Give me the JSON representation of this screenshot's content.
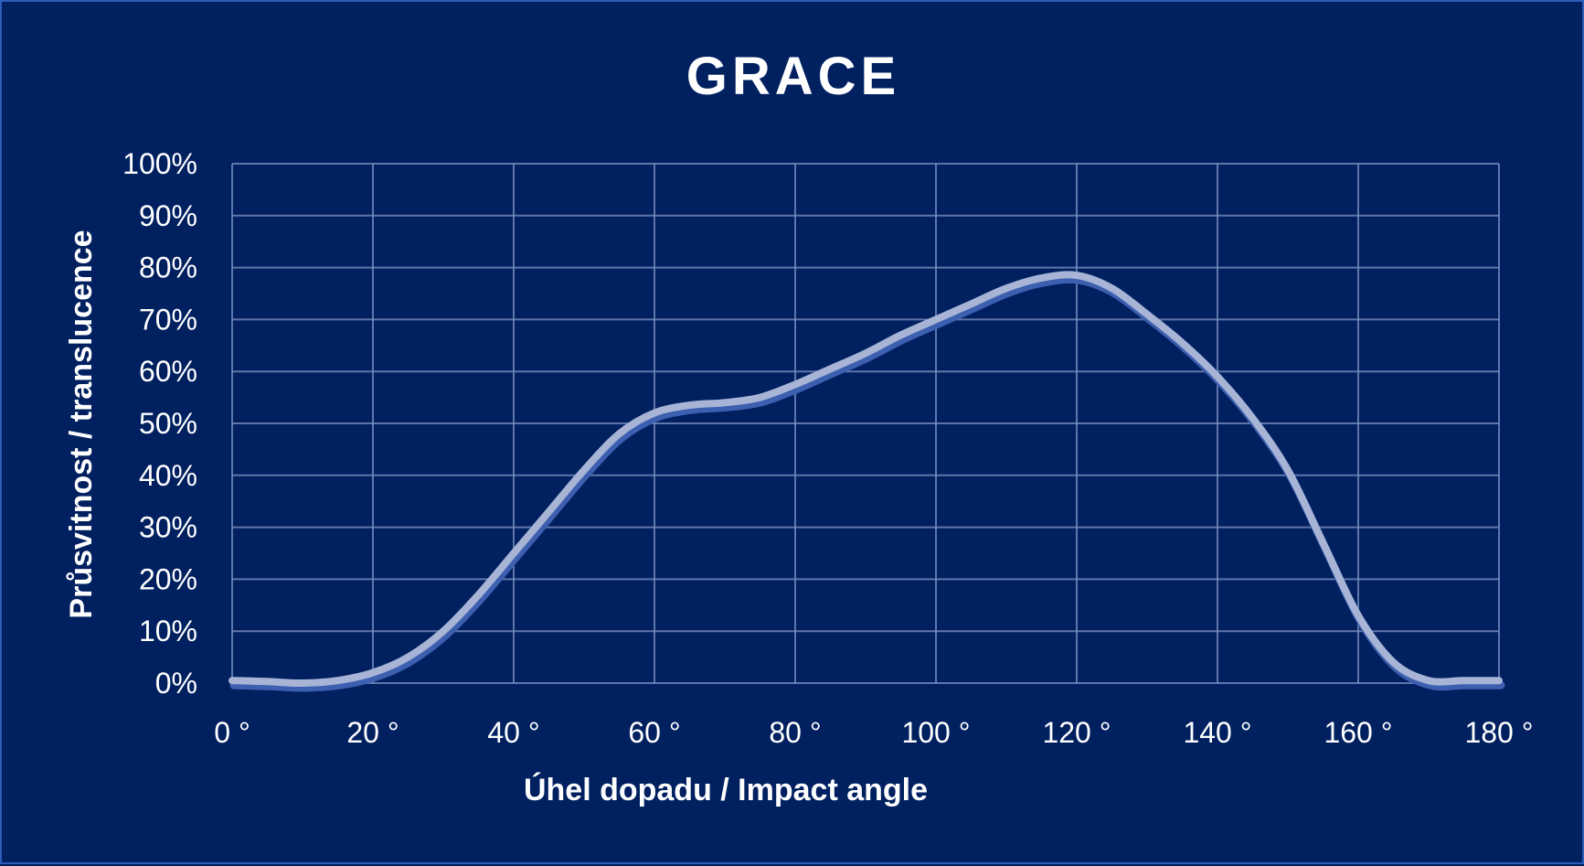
{
  "chart_data": {
    "type": "line",
    "title": "GRACE",
    "xlabel": "Úhel dopadu / Impact angle",
    "ylabel": "Průsvitnost  / translucence",
    "xlim": [
      0,
      180
    ],
    "ylim": [
      0,
      100
    ],
    "x_ticks": [
      0,
      20,
      40,
      60,
      80,
      100,
      120,
      140,
      160,
      180
    ],
    "x_tick_labels": [
      "0 °",
      "20 °",
      "40 °",
      "60 °",
      "80 °",
      "100 °",
      "120 °",
      "140 °",
      "160 °",
      "180 °"
    ],
    "y_ticks": [
      0,
      10,
      20,
      30,
      40,
      50,
      60,
      70,
      80,
      90,
      100
    ],
    "y_tick_labels": [
      "0%",
      "10%",
      "20%",
      "30%",
      "40%",
      "50%",
      "60%",
      "70%",
      "80%",
      "90%",
      "100%"
    ],
    "grid": true,
    "legend": "none",
    "series": [
      {
        "x": [
          0,
          5,
          10,
          15,
          20,
          25,
          30,
          35,
          40,
          45,
          50,
          55,
          60,
          65,
          70,
          75,
          80,
          85,
          90,
          95,
          100,
          105,
          110,
          115,
          120,
          125,
          130,
          135,
          140,
          145,
          150,
          155,
          160,
          165,
          170,
          175,
          180
        ],
        "y": [
          0.5,
          0.3,
          0,
          0.5,
          2,
          5,
          10,
          17,
          25,
          33,
          41,
          48,
          52,
          53.5,
          54,
          55,
          57.5,
          60.5,
          63.5,
          67,
          70,
          73,
          76,
          78,
          78.5,
          76,
          71,
          65.5,
          59,
          51,
          41,
          27,
          13,
          4,
          0.5,
          0.5,
          0.5
        ],
        "color": "#a7b4d6"
      }
    ],
    "colors": {
      "background": "#002060",
      "border": "#2e5cb8",
      "grid": "#7f93c4",
      "line": "#a7b4d6",
      "line_shadow": "#3d5fb0",
      "text": "#ffffff"
    }
  }
}
